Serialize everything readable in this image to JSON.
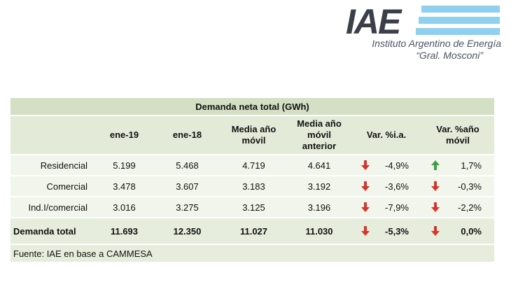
{
  "logo": {
    "mark": "IAE",
    "name": "Instituto Argentino de Energía",
    "subtitle": "“Gral. Mosconi”"
  },
  "table": {
    "title": "Demanda neta total (GWh)",
    "columns": [
      "ene-19",
      "ene-18",
      "Media año móvil",
      "Media año móvil anterior",
      "Var. %i.a.",
      "Var. %año móvil"
    ],
    "rows": [
      {
        "label": "Residencial",
        "cells": [
          "5.199",
          "5.468",
          "4.719",
          "4.641",
          "-4,9%",
          "1,7%"
        ]
      },
      {
        "label": "Comercial",
        "cells": [
          "3.478",
          "3.607",
          "3.183",
          "3.192",
          "-3,6%",
          "-0,3%"
        ]
      },
      {
        "label": "Ind.I/comercial",
        "cells": [
          "3.016",
          "3.275",
          "3.125",
          "3.196",
          "-7,9%",
          "-2,2%"
        ]
      },
      {
        "label": "Demanda total",
        "cells": [
          "11.693",
          "12.350",
          "11.027",
          "11.030",
          "-5,3%",
          "0,0%"
        ]
      }
    ],
    "source": "Fuente: IAE en base a CAMMESA"
  }
}
